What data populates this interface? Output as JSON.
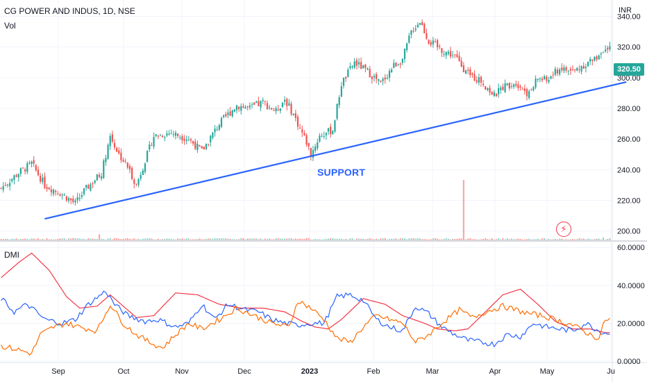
{
  "header": {
    "symbol_line": "CG POWER AND INDUS, 1D, NSE",
    "vol_label": "Vol",
    "dmi_label": "DMI",
    "currency": "INR",
    "last_price": "320.50"
  },
  "annotation": {
    "text": "SUPPORT"
  },
  "colors": {
    "up": "#26a69a",
    "down": "#ef5350",
    "volume_up": "#a5d6d1",
    "volume_down": "#f7a9a7",
    "support_line": "#2962ff",
    "di_plus": "#2962ff",
    "di_minus": "#ff6d00",
    "adx": "#f23645",
    "grid": "#f0f3fa"
  },
  "icons": {
    "alert": "lightning-icon"
  },
  "chart_data": [
    {
      "type": "candlestick",
      "title": "CG POWER AND INDUS, 1D, NSE",
      "x_tick_labels": [
        "Sep",
        "Oct",
        "Nov",
        "Dec",
        "2023",
        "Feb",
        "Mar",
        "Apr",
        "May",
        "Ju"
      ],
      "y_tick_labels": [
        "200.00",
        "220.00",
        "240.00",
        "260.00",
        "280.00",
        "300.00",
        "320.00",
        "340.00"
      ],
      "ylim": [
        194,
        347
      ],
      "y_unit": "INR",
      "close_anchors": [
        [
          0,
          228
        ],
        [
          8,
          238
        ],
        [
          14,
          244
        ],
        [
          20,
          230
        ],
        [
          28,
          224
        ],
        [
          34,
          218
        ],
        [
          38,
          226
        ],
        [
          46,
          238
        ],
        [
          50,
          262
        ],
        [
          54,
          250
        ],
        [
          58,
          242
        ],
        [
          62,
          230
        ],
        [
          66,
          246
        ],
        [
          70,
          262
        ],
        [
          78,
          264
        ],
        [
          86,
          260
        ],
        [
          92,
          252
        ],
        [
          100,
          270
        ],
        [
          108,
          282
        ],
        [
          114,
          280
        ],
        [
          120,
          284
        ],
        [
          126,
          278
        ],
        [
          130,
          286
        ],
        [
          134,
          276
        ],
        [
          140,
          258
        ],
        [
          142,
          250
        ],
        [
          146,
          262
        ],
        [
          152,
          266
        ],
        [
          156,
          296
        ],
        [
          162,
          310
        ],
        [
          168,
          304
        ],
        [
          174,
          296
        ],
        [
          180,
          308
        ],
        [
          184,
          312
        ],
        [
          188,
          330
        ],
        [
          192,
          337
        ],
        [
          196,
          324
        ],
        [
          202,
          318
        ],
        [
          208,
          314
        ],
        [
          214,
          302
        ],
        [
          220,
          298
        ],
        [
          226,
          288
        ],
        [
          230,
          294
        ],
        [
          236,
          297
        ],
        [
          242,
          289
        ],
        [
          246,
          300
        ],
        [
          250,
          298
        ],
        [
          256,
          306
        ],
        [
          262,
          304
        ],
        [
          268,
          309
        ],
        [
          272,
          312
        ],
        [
          277,
          320.5
        ]
      ],
      "support_line": {
        "from": [
          20,
          208
        ],
        "to": [
          277,
          294
        ]
      },
      "volume": {
        "base": 1.5,
        "spikes": [
          {
            "bar": 45,
            "value": 6
          },
          {
            "bar": 212,
            "value": 60
          },
          {
            "bar": 276,
            "value": 3
          }
        ]
      }
    },
    {
      "type": "line",
      "title": "DMI",
      "y_tick_labels": [
        "0.0000",
        "20.0000",
        "40.0000",
        "60.0000"
      ],
      "ylim": [
        0,
        63
      ],
      "series": [
        {
          "key": "adx",
          "color": "#f23645",
          "anchors": [
            [
              0,
              44
            ],
            [
              8,
              52
            ],
            [
              14,
              57
            ],
            [
              22,
              48
            ],
            [
              30,
              34
            ],
            [
              36,
              28
            ],
            [
              44,
              29
            ],
            [
              50,
              35
            ],
            [
              56,
              29
            ],
            [
              62,
              23
            ],
            [
              70,
              24
            ],
            [
              80,
              36
            ],
            [
              90,
              35
            ],
            [
              100,
              30
            ],
            [
              110,
              28
            ],
            [
              120,
              28
            ],
            [
              130,
              26
            ],
            [
              138,
              21
            ],
            [
              144,
              18
            ],
            [
              150,
              17
            ],
            [
              156,
              22
            ],
            [
              166,
              33
            ],
            [
              176,
              30
            ],
            [
              184,
              24
            ],
            [
              194,
              20
            ],
            [
              200,
              17
            ],
            [
              208,
              16
            ],
            [
              214,
              17
            ],
            [
              222,
              26
            ],
            [
              230,
              35
            ],
            [
              238,
              38
            ],
            [
              246,
              30
            ],
            [
              254,
              21
            ],
            [
              262,
              17
            ],
            [
              270,
              17
            ],
            [
              277,
              15
            ]
          ]
        },
        {
          "key": "di_plus",
          "color": "#2962ff",
          "anchors": [
            [
              0,
              33
            ],
            [
              6,
              26
            ],
            [
              12,
              30
            ],
            [
              20,
              22
            ],
            [
              28,
              20
            ],
            [
              34,
              22
            ],
            [
              40,
              30
            ],
            [
              48,
              37
            ],
            [
              52,
              30
            ],
            [
              58,
              24
            ],
            [
              66,
              21
            ],
            [
              72,
              22
            ],
            [
              80,
              18
            ],
            [
              86,
              20
            ],
            [
              92,
              30
            ],
            [
              98,
              22
            ],
            [
              104,
              30
            ],
            [
              112,
              27
            ],
            [
              118,
              26
            ],
            [
              124,
              22
            ],
            [
              130,
              20
            ],
            [
              136,
              19
            ],
            [
              142,
              20
            ],
            [
              148,
              20
            ],
            [
              154,
              34
            ],
            [
              160,
              35
            ],
            [
              166,
              32
            ],
            [
              172,
              22
            ],
            [
              178,
              18
            ],
            [
              184,
              16
            ],
            [
              190,
              29
            ],
            [
              196,
              25
            ],
            [
              202,
              18
            ],
            [
              208,
              14
            ],
            [
              214,
              11
            ],
            [
              220,
              10
            ],
            [
              226,
              9
            ],
            [
              232,
              14
            ],
            [
              238,
              13
            ],
            [
              244,
              20
            ],
            [
              250,
              18
            ],
            [
              256,
              17
            ],
            [
              262,
              16
            ],
            [
              268,
              20
            ],
            [
              274,
              16
            ],
            [
              277,
              15
            ]
          ]
        },
        {
          "key": "di_minus",
          "color": "#ff6d00",
          "anchors": [
            [
              0,
              8
            ],
            [
              8,
              6
            ],
            [
              14,
              4
            ],
            [
              18,
              14
            ],
            [
              24,
              18
            ],
            [
              30,
              20
            ],
            [
              36,
              18
            ],
            [
              44,
              16
            ],
            [
              50,
              30
            ],
            [
              56,
              20
            ],
            [
              62,
              14
            ],
            [
              68,
              10
            ],
            [
              74,
              7
            ],
            [
              80,
              14
            ],
            [
              86,
              20
            ],
            [
              92,
              17
            ],
            [
              100,
              22
            ],
            [
              108,
              28
            ],
            [
              116,
              24
            ],
            [
              124,
              20
            ],
            [
              132,
              18
            ],
            [
              136,
              32
            ],
            [
              142,
              28
            ],
            [
              148,
              22
            ],
            [
              154,
              12
            ],
            [
              160,
              10
            ],
            [
              166,
              18
            ],
            [
              172,
              24
            ],
            [
              178,
              22
            ],
            [
              184,
              20
            ],
            [
              190,
              10
            ],
            [
              196,
              14
            ],
            [
              202,
              20
            ],
            [
              210,
              27
            ],
            [
              216,
              23
            ],
            [
              222,
              26
            ],
            [
              230,
              29
            ],
            [
              236,
              27
            ],
            [
              242,
              25
            ],
            [
              248,
              24
            ],
            [
              254,
              22
            ],
            [
              262,
              19
            ],
            [
              270,
              14
            ],
            [
              274,
              12
            ],
            [
              277,
              22
            ]
          ]
        }
      ]
    }
  ]
}
